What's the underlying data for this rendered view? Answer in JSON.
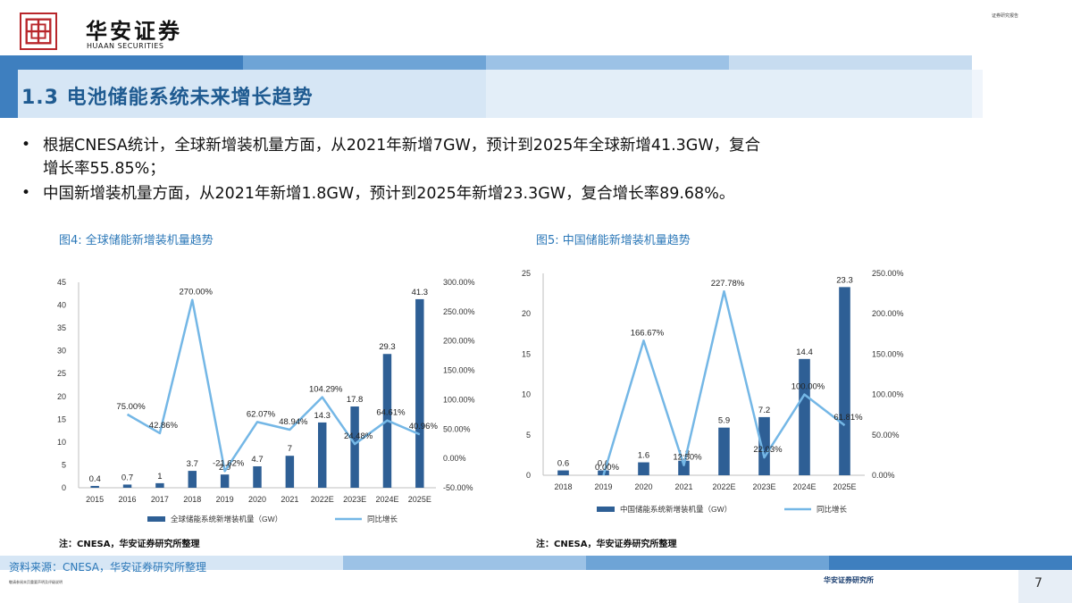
{
  "header": {
    "brand_cn": "华安证券",
    "brand_en": "HUAAN SECURITIES",
    "top_right_tag": "证券研究报告"
  },
  "title": "1.3 电池储能系统未来增长趋势",
  "bullets": [
    {
      "line1": "根据CNESA统计，全球新增装机量方面，从2021年新增7GW，预计到2025年全球新增41.3GW，复合",
      "line2": "增长率55.85%；"
    },
    {
      "line1": "中国新增装机量方面，从2021年新增1.8GW，预计到2025年新增23.3GW，复合增长率89.68%。"
    }
  ],
  "figures": [
    {
      "title": "图4:  全球储能新增装机量趋势",
      "note": "注：CNESA，华安证券研究所整理"
    },
    {
      "title": "图5:  中国储能新增装机量趋势",
      "note": "注：CNESA，华安证券研究所整理"
    }
  ],
  "chart_data": [
    {
      "type": "bar",
      "categories": [
        "2015",
        "2016",
        "2017",
        "2018",
        "2019",
        "2020",
        "2021",
        "2022E",
        "2023E",
        "2024E",
        "2025E"
      ],
      "series": [
        {
          "name": "全球储能系统新增装机量（GW）",
          "type": "bar",
          "values": [
            0.4,
            0.7,
            1,
            3.7,
            2.9,
            4.7,
            7,
            14.3,
            17.8,
            29.3,
            41.3
          ],
          "labels": [
            "0.4",
            "0.7",
            "1",
            "3.7",
            "2.9",
            "4.7",
            "7",
            "14.3",
            "17.8",
            "29.3",
            "41.3"
          ]
        },
        {
          "name": "同比增长",
          "type": "line",
          "values": [
            null,
            75.0,
            42.86,
            270.0,
            -21.62,
            62.07,
            48.94,
            104.29,
            24.48,
            64.61,
            40.96
          ],
          "labels": [
            "",
            "75.00%",
            "42.86%",
            "270.00%",
            "-21.62%",
            "62.07%",
            "48.94%",
            "104.29%",
            "24.48%",
            "64.61%",
            "40.96%"
          ]
        }
      ],
      "ylim": [
        0,
        45
      ],
      "yticks": [
        "0",
        "5",
        "10",
        "15",
        "20",
        "25",
        "30",
        "35",
        "40",
        "45"
      ],
      "y2lim": [
        -50,
        300
      ],
      "y2ticks": [
        "-50.00%",
        "0.00%",
        "50.00%",
        "100.00%",
        "150.00%",
        "200.00%",
        "250.00%",
        "300.00%"
      ],
      "legend": "bottom",
      "colors": {
        "bar": "#2e5f95",
        "line": "#74b7e6"
      }
    },
    {
      "type": "bar",
      "categories": [
        "2018",
        "2019",
        "2020",
        "2021",
        "2022E",
        "2023E",
        "2024E",
        "2025E"
      ],
      "series": [
        {
          "name": "中国储能系统新增装机量（GW）",
          "type": "bar",
          "values": [
            0.6,
            0.6,
            1.6,
            1.8,
            5.9,
            7.2,
            14.4,
            23.3
          ],
          "labels": [
            "0.6",
            "0.6",
            "1.6",
            "1.8",
            "5.9",
            "7.2",
            "14.4",
            "23.3"
          ]
        },
        {
          "name": "同比增长",
          "type": "line",
          "values": [
            null,
            0.0,
            166.67,
            12.5,
            227.78,
            22.03,
            100.0,
            61.81
          ],
          "labels": [
            "",
            "0.00%",
            "166.67%",
            "12.50%",
            "227.78%",
            "22.03%",
            "100.00%",
            "61.81%"
          ]
        }
      ],
      "ylim": [
        0,
        25
      ],
      "yticks": [
        "0",
        "5",
        "10",
        "15",
        "20",
        "25"
      ],
      "y2lim": [
        0,
        250
      ],
      "y2ticks": [
        "0.00%",
        "50.00%",
        "100.00%",
        "150.00%",
        "200.00%",
        "250.00%"
      ],
      "legend": "bottom",
      "colors": {
        "bar": "#2e5f95",
        "line": "#74b7e6"
      }
    }
  ],
  "footer": {
    "source": "资料来源：CNESA，华安证券研究所整理",
    "left_small": "敬请参阅末页重要声明及评级说明",
    "right": "华安证券研究所",
    "page_number": "7"
  },
  "colors": {
    "brand_red": "#b8262b",
    "title_blue": "#1f5b91",
    "accent_blue": "#2c78b8"
  }
}
